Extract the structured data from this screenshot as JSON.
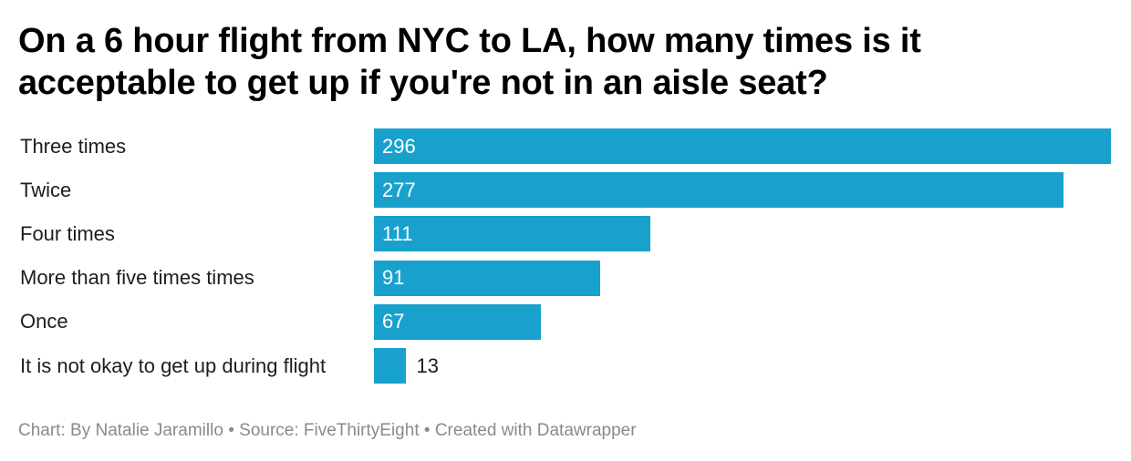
{
  "title": "On a 6 hour flight from NYC to LA, how many times is it acceptable to get up if you're not in an aisle seat?",
  "footer": {
    "chart_by_label": "Chart: By Natalie Jaramillo",
    "separator": "•",
    "source_label": "Source: FiveThirtyEight",
    "created_with_label": "Created with Datawrapper"
  },
  "colors": {
    "bar": "#18a1cd"
  },
  "chart_data": {
    "type": "bar",
    "orientation": "horizontal",
    "categories": [
      "Three times",
      "Twice",
      "Four times",
      "More than five times times",
      "Once",
      "It is not okay to get up during flight"
    ],
    "values": [
      296,
      277,
      111,
      91,
      67,
      13
    ],
    "value_labels": [
      "296",
      "277",
      "111",
      "91",
      "67",
      "13"
    ],
    "xlim": [
      0,
      296
    ],
    "grid": false,
    "legend": "none"
  }
}
